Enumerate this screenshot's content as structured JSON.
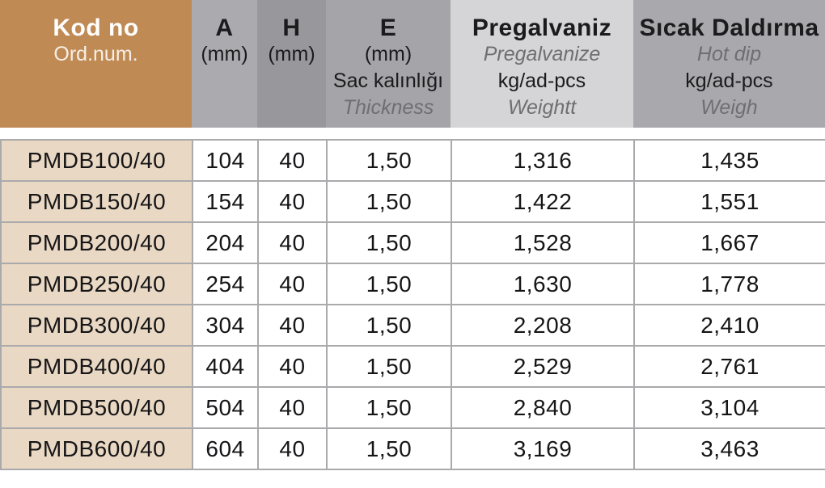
{
  "header": {
    "kod": {
      "title": "Kod no",
      "subtitle": "Ord.num."
    },
    "a": {
      "title": "A",
      "unit": "(mm)"
    },
    "h": {
      "title": "H",
      "unit": "(mm)"
    },
    "e": {
      "title": "E",
      "unit": "(mm)",
      "desc_tr": "Sac kalınlığı",
      "desc_en": "Thickness"
    },
    "pregalvaniz": {
      "title": "Pregalvaniz",
      "subtitle": "Pregalvanize",
      "unit": "kg/ad-pcs",
      "weight_label": "Weightt"
    },
    "hot_dip": {
      "title": "Sıcak Daldırma",
      "subtitle": "Hot dip",
      "unit": "kg/ad-pcs",
      "weight_label": "Weigh"
    }
  },
  "rows": [
    {
      "kod": "PMDB100/40",
      "a": "104",
      "h": "40",
      "e": "1,50",
      "pre": "1,316",
      "hot": "1,435"
    },
    {
      "kod": "PMDB150/40",
      "a": "154",
      "h": "40",
      "e": "1,50",
      "pre": "1,422",
      "hot": "1,551"
    },
    {
      "kod": "PMDB200/40",
      "a": "204",
      "h": "40",
      "e": "1,50",
      "pre": "1,528",
      "hot": "1,667"
    },
    {
      "kod": "PMDB250/40",
      "a": "254",
      "h": "40",
      "e": "1,50",
      "pre": "1,630",
      "hot": "1,778"
    },
    {
      "kod": "PMDB300/40",
      "a": "304",
      "h": "40",
      "e": "1,50",
      "pre": "2,208",
      "hot": "2,410"
    },
    {
      "kod": "PMDB400/40",
      "a": "404",
      "h": "40",
      "e": "1,50",
      "pre": "2,529",
      "hot": "2,761"
    },
    {
      "kod": "PMDB500/40",
      "a": "504",
      "h": "40",
      "e": "1,50",
      "pre": "2,840",
      "hot": "3,104"
    },
    {
      "kod": "PMDB600/40",
      "a": "604",
      "h": "40",
      "e": "1,50",
      "pre": "3,169",
      "hot": "3,463"
    }
  ],
  "colors": {
    "header_kod_bg": "#c08a54",
    "row_kod_bg": "#e9d8c3",
    "header_gray_a": "#ababaf",
    "header_gray_h": "#98989c",
    "header_gray_e": "#a5a5a9",
    "header_gray_pregalvaniz": "#d5d5d7",
    "header_gray_hot_dip": "#a9a9ad",
    "grid_border": "#aaaaac",
    "text": "#151517",
    "muted_italic_text": "#6f6f73"
  }
}
